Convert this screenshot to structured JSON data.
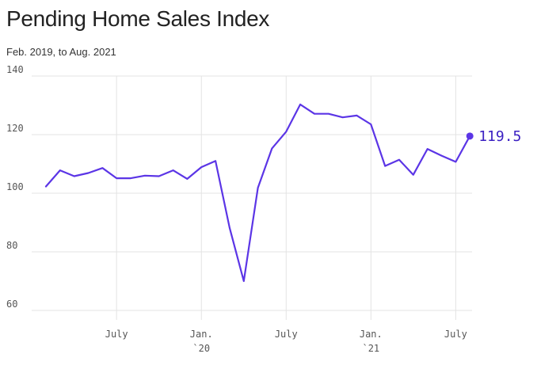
{
  "chart_data": {
    "type": "line",
    "title": "Pending Home Sales Index",
    "subtitle": "Feb. 2019, to Aug. 2021",
    "y_ticks": [
      60,
      80,
      100,
      120,
      140
    ],
    "ylim": [
      55,
      140
    ],
    "x_ticks": [
      {
        "index": 5,
        "label": "July",
        "sublabel": ""
      },
      {
        "index": 11,
        "label": "Jan.",
        "sublabel": "`20"
      },
      {
        "index": 17,
        "label": "July",
        "sublabel": ""
      },
      {
        "index": 23,
        "label": "Jan.",
        "sublabel": "`21"
      },
      {
        "index": 29,
        "label": "July",
        "sublabel": ""
      }
    ],
    "x": [
      "Feb. 2019",
      "Mar. 2019",
      "Apr. 2019",
      "May 2019",
      "Jun. 2019",
      "Jul. 2019",
      "Aug. 2019",
      "Sep. 2019",
      "Oct. 2019",
      "Nov. 2019",
      "Dec. 2019",
      "Jan. 2020",
      "Feb. 2020",
      "Mar. 2020",
      "Apr. 2020",
      "May 2020",
      "Jun. 2020",
      "Jul. 2020",
      "Aug. 2020",
      "Sep. 2020",
      "Oct. 2020",
      "Nov. 2020",
      "Dec. 2020",
      "Jan. 2021",
      "Feb. 2021",
      "Mar. 2021",
      "Apr. 2021",
      "May 2021",
      "Jun. 2021",
      "Jul. 2021",
      "Aug. 2021"
    ],
    "series": [
      {
        "values": [
          102.3,
          107.8,
          105.8,
          106.9,
          108.6,
          105.1,
          105.1,
          106.0,
          105.8,
          107.8,
          104.9,
          108.9,
          111.0,
          88.2,
          70.0,
          101.8,
          115.3,
          121.0,
          130.3,
          127.1,
          127.1,
          125.9,
          126.5,
          123.5,
          109.3,
          111.4,
          106.3,
          115.1,
          112.8,
          110.7,
          119.5
        ]
      }
    ],
    "end_label": "119.5",
    "line_color": "#5b35e6",
    "label_color": "#3a1fc2",
    "grid": true
  }
}
